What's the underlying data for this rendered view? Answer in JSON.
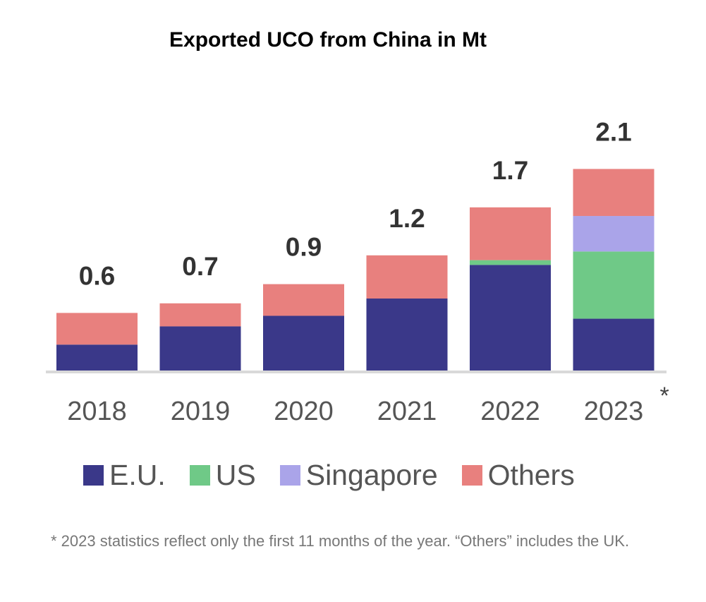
{
  "chart_data": {
    "type": "bar",
    "stacked": true,
    "title": "Exported UCO from China in Mt",
    "categories": [
      "2018",
      "2019",
      "2020",
      "2021",
      "2022",
      "2023"
    ],
    "category_notes": [
      "",
      "",
      "",
      "",
      "",
      "*"
    ],
    "totals": [
      "0.6",
      "0.7",
      "0.9",
      "1.2",
      "1.7",
      "2.1"
    ],
    "series": [
      {
        "name": "E.U.",
        "color": "#3a3889",
        "values": [
          0.27,
          0.46,
          0.57,
          0.75,
          1.1,
          0.54
        ]
      },
      {
        "name": "US",
        "color": "#6fc987",
        "values": [
          0,
          0,
          0,
          0,
          0.05,
          0.7
        ]
      },
      {
        "name": "Singapore",
        "color": "#aaa4e9",
        "values": [
          0,
          0,
          0,
          0,
          0,
          0.37
        ]
      },
      {
        "name": "Others",
        "color": "#e8807e",
        "values": [
          0.33,
          0.24,
          0.33,
          0.45,
          0.55,
          0.49
        ]
      }
    ],
    "ylim": [
      0,
      2.1
    ],
    "grid": false,
    "legend": "bottom",
    "footnote": "* 2023 statistics reflect only the first 11 months of the year. “Others” includes the UK."
  }
}
